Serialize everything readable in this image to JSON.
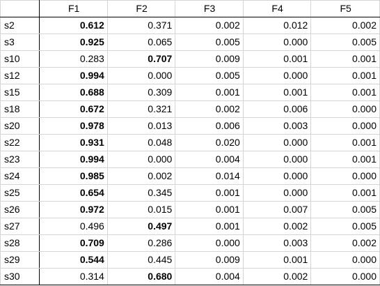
{
  "table": {
    "columns": [
      "",
      "F1",
      "F2",
      "F3",
      "F4",
      "F5"
    ],
    "rows": [
      {
        "label": "s2",
        "values": [
          "0.612",
          "0.371",
          "0.002",
          "0.012",
          "0.002"
        ],
        "bold": [
          0
        ]
      },
      {
        "label": "s3",
        "values": [
          "0.925",
          "0.065",
          "0.005",
          "0.000",
          "0.005"
        ],
        "bold": [
          0
        ]
      },
      {
        "label": "s10",
        "values": [
          "0.283",
          "0.707",
          "0.009",
          "0.001",
          "0.001"
        ],
        "bold": [
          1
        ]
      },
      {
        "label": "s12",
        "values": [
          "0.994",
          "0.000",
          "0.005",
          "0.000",
          "0.001"
        ],
        "bold": [
          0
        ]
      },
      {
        "label": "s15",
        "values": [
          "0.688",
          "0.309",
          "0.001",
          "0.001",
          "0.001"
        ],
        "bold": [
          0
        ]
      },
      {
        "label": "s18",
        "values": [
          "0.672",
          "0.321",
          "0.002",
          "0.006",
          "0.000"
        ],
        "bold": [
          0
        ]
      },
      {
        "label": "s20",
        "values": [
          "0.978",
          "0.013",
          "0.006",
          "0.003",
          "0.000"
        ],
        "bold": [
          0
        ]
      },
      {
        "label": "s22",
        "values": [
          "0.931",
          "0.048",
          "0.020",
          "0.000",
          "0.001"
        ],
        "bold": [
          0
        ]
      },
      {
        "label": "s23",
        "values": [
          "0.994",
          "0.000",
          "0.004",
          "0.000",
          "0.001"
        ],
        "bold": [
          0
        ]
      },
      {
        "label": "s24",
        "values": [
          "0.985",
          "0.002",
          "0.014",
          "0.000",
          "0.000"
        ],
        "bold": [
          0
        ]
      },
      {
        "label": "s25",
        "values": [
          "0.654",
          "0.345",
          "0.001",
          "0.000",
          "0.001"
        ],
        "bold": [
          0
        ]
      },
      {
        "label": "s26",
        "values": [
          "0.972",
          "0.015",
          "0.001",
          "0.007",
          "0.005"
        ],
        "bold": [
          0
        ]
      },
      {
        "label": "s27",
        "values": [
          "0.496",
          "0.497",
          "0.001",
          "0.002",
          "0.005"
        ],
        "bold": [
          1
        ]
      },
      {
        "label": "s28",
        "values": [
          "0.709",
          "0.286",
          "0.000",
          "0.003",
          "0.002"
        ],
        "bold": [
          0
        ]
      },
      {
        "label": "s29",
        "values": [
          "0.544",
          "0.445",
          "0.009",
          "0.001",
          "0.000"
        ],
        "bold": [
          0
        ]
      },
      {
        "label": "s30",
        "values": [
          "0.314",
          "0.680",
          "0.004",
          "0.002",
          "0.000"
        ],
        "bold": [
          1
        ]
      }
    ]
  }
}
